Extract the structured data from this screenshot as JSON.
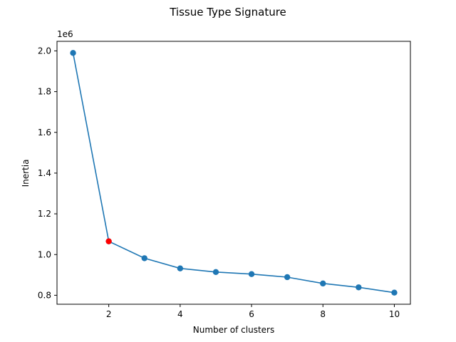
{
  "chart_data": {
    "type": "line",
    "title": "Tissue Type Signature",
    "xlabel": "Number of clusters",
    "ylabel": "Inertia",
    "y_offset_label": "1e6",
    "y_scale_factor": 1000000,
    "x": [
      1,
      2,
      3,
      4,
      5,
      6,
      7,
      8,
      9,
      10
    ],
    "series": [
      {
        "values": [
          1990000,
          1065000,
          982000,
          932000,
          914000,
          904000,
          889000,
          858000,
          839000,
          813000
        ],
        "color": "#1f77b4",
        "marker": "circle"
      }
    ],
    "highlight": {
      "x": 2,
      "y": 1065000,
      "color": "#ff0000"
    },
    "xlim": [
      0.55,
      10.45
    ],
    "ylim": [
      756000,
      2047000
    ],
    "xticks": [
      2,
      4,
      6,
      8,
      10
    ],
    "xtick_labels": [
      "2",
      "4",
      "6",
      "8",
      "10"
    ],
    "yticks": [
      800000,
      1000000,
      1200000,
      1400000,
      1600000,
      1800000,
      2000000
    ],
    "ytick_labels": [
      "0.8",
      "1.0",
      "1.2",
      "1.4",
      "1.6",
      "1.8",
      "2.0"
    ],
    "grid": false,
    "legend": "none"
  }
}
